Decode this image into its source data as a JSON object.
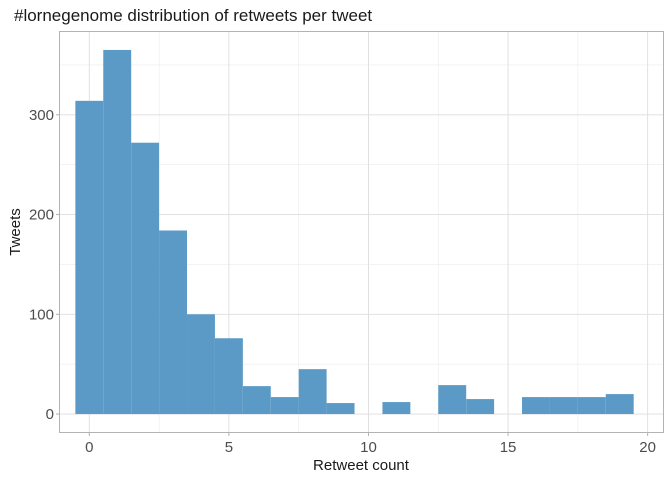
{
  "chart_data": {
    "type": "bar",
    "title": "#lornegenome distribution of retweets per tweet",
    "xlabel": "Retweet count",
    "ylabel": "Tweets",
    "bin_width": 1,
    "x": [
      0,
      1,
      2,
      3,
      4,
      5,
      6,
      7,
      8,
      9,
      10,
      11,
      12,
      13,
      14,
      15,
      16,
      17,
      18,
      19
    ],
    "values": [
      314,
      365,
      272,
      184,
      100,
      76,
      28,
      17,
      45,
      11,
      0,
      12,
      0,
      29,
      15,
      0,
      17,
      17,
      17,
      20
    ],
    "xlim": [
      -1.05,
      20.55
    ],
    "ylim": [
      -18,
      383
    ],
    "x_ticks": [
      0,
      5,
      10,
      15,
      20
    ],
    "y_ticks": [
      0,
      100,
      200,
      300
    ],
    "x_tick_labels": [
      "0",
      "5",
      "10",
      "15",
      "20"
    ],
    "y_tick_labels": [
      "0",
      "100",
      "200",
      "300"
    ],
    "grid": true,
    "bar_color": "#5b9ac6"
  }
}
